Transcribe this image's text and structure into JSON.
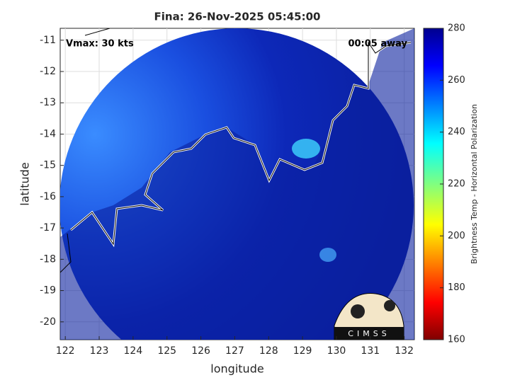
{
  "chart_data": {
    "type": "map",
    "title": "Fina: 26-Nov-2025 05:45:00",
    "annotations": [
      "Vmax: 30 kts",
      "00:05 away"
    ],
    "xlabel": "longitude",
    "ylabel": "latitude",
    "xlim": [
      121.85,
      132.3
    ],
    "xticks": [
      122,
      123,
      124,
      125,
      126,
      127,
      128,
      129,
      130,
      131,
      132
    ],
    "ylim": [
      -20.57,
      -10.62
    ],
    "yticks": [
      -11,
      -12,
      -13,
      -14,
      -15,
      -16,
      -17,
      -18,
      -19,
      -20
    ],
    "grid": true,
    "colorbar": {
      "label": "Brightness Temp - Horizontal Polarization",
      "lim": [
        160,
        280
      ],
      "ticks": [
        160,
        180,
        200,
        220,
        240,
        260,
        280
      ]
    },
    "logo": "CIMSS"
  }
}
